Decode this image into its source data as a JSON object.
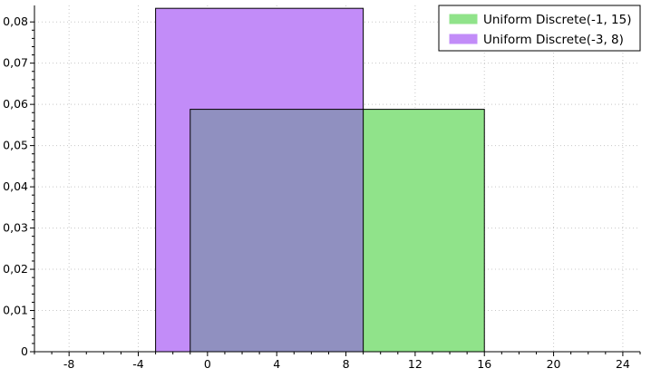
{
  "chart_data": {
    "type": "area",
    "xlim": [
      -10,
      25
    ],
    "ylim": [
      0,
      0.084
    ],
    "x_ticks": [
      -8,
      -4,
      0,
      4,
      8,
      12,
      16,
      20,
      24
    ],
    "x_tick_labels": [
      "-8",
      "-4",
      "0",
      "4",
      "8",
      "12",
      "16",
      "20",
      "24"
    ],
    "y_ticks": [
      0,
      0.01,
      0.02,
      0.03,
      0.04,
      0.05,
      0.06,
      0.07,
      0.08
    ],
    "y_tick_labels": [
      "0",
      "0,01",
      "0,02",
      "0,03",
      "0,04",
      "0,05",
      "0,06",
      "0,07",
      "0,08"
    ],
    "grid": true,
    "legend_position": "top-right",
    "series": [
      {
        "name": "Uniform Discrete(-1, 15)",
        "color": "#90e38a",
        "x_start": -1,
        "x_end": 16,
        "value": 0.0588
      },
      {
        "name": "Uniform Discrete(-3, 8)",
        "color": "#c28cf8",
        "x_start": -3,
        "x_end": 9,
        "value": 0.0833
      }
    ],
    "overlap_color": "#9090c0"
  }
}
